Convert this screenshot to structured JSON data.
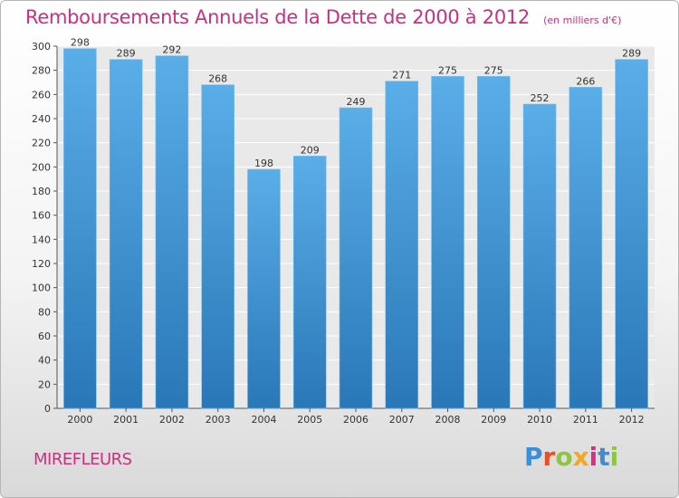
{
  "header": {
    "title": "Remboursements Annuels de la Dette de 2000 à 2012",
    "unit": "(en milliers d'€)"
  },
  "footer": {
    "commune": "MIREFLEURS",
    "logo": "Proxiti",
    "logo_colors": [
      "#3a8fd6",
      "#e8501f",
      "#8dc63f",
      "#f5a623",
      "#d62f8a",
      "#3a8fd6",
      "#8dc63f"
    ]
  },
  "colors": {
    "bar_top": "#5aaee8",
    "bar_bottom": "#2a77b7",
    "accent": "#cc2f7e"
  },
  "chart_data": {
    "type": "bar",
    "title": "Remboursements Annuels de la Dette de 2000 à 2012",
    "categories": [
      "2000",
      "2001",
      "2002",
      "2003",
      "2004",
      "2005",
      "2006",
      "2007",
      "2008",
      "2009",
      "2010",
      "2011",
      "2012"
    ],
    "values": [
      298,
      289,
      292,
      268,
      198,
      209,
      249,
      271,
      275,
      275,
      252,
      266,
      289
    ],
    "ylim": [
      0,
      300
    ],
    "yticks": [
      0,
      20,
      40,
      60,
      80,
      100,
      120,
      140,
      160,
      180,
      200,
      220,
      240,
      260,
      280,
      300
    ],
    "grid": true,
    "data_labels": true
  }
}
